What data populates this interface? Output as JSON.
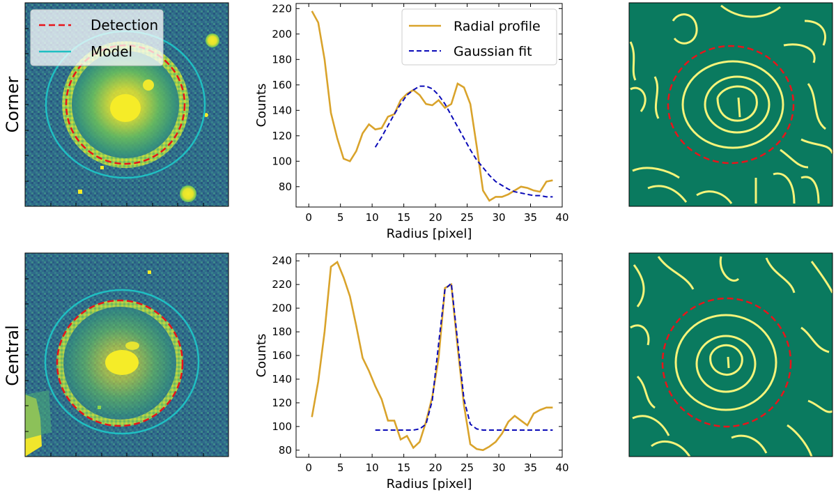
{
  "row_labels": [
    "Corner",
    "Central"
  ],
  "legend_image": {
    "items": [
      {
        "label": "Detection",
        "color": "#e8141a",
        "style": "dashed"
      },
      {
        "label": "Model",
        "color": "#1fbfc2",
        "style": "solid"
      }
    ]
  },
  "colors": {
    "image_bg": "#2f6f8a",
    "ring_fill": "#9ed646",
    "core": "#f5ec28",
    "edge_bg": "#0a7a5f",
    "edge_line": "#f6f47a",
    "profile": "#d9a32b",
    "fit": "#0b0bb8",
    "detection": "#e8141a",
    "model": "#1fbfc2"
  },
  "chart_data": [
    {
      "type": "line",
      "panel": "corner-profile",
      "xlabel": "Radius [pixel]",
      "ylabel": "Counts",
      "xlim": [
        -2,
        40
      ],
      "ylim": [
        64,
        224
      ],
      "xticks": [
        0,
        5,
        10,
        15,
        20,
        25,
        30,
        35,
        40
      ],
      "yticks": [
        80,
        100,
        120,
        140,
        160,
        180,
        200,
        220
      ],
      "legend": [
        "Radial profile",
        "Gaussian fit"
      ],
      "series": [
        {
          "name": "Radial profile",
          "x": [
            0.5,
            1.5,
            2.5,
            3.5,
            4.5,
            5.5,
            6.5,
            7.5,
            8.5,
            9.5,
            10.5,
            11.5,
            12.5,
            13.5,
            14.5,
            15.5,
            16.5,
            17.5,
            18.5,
            19.5,
            20.5,
            21.5,
            22.5,
            23.5,
            24.5,
            25.5,
            26.5,
            27.5,
            28.5,
            29.5,
            30.5,
            31.5,
            32.5,
            33.5,
            34.5,
            35.5,
            36.5,
            37.5,
            38.5
          ],
          "y": [
            218,
            209,
            180,
            138,
            118,
            102,
            100,
            108,
            122,
            129,
            125,
            126,
            135,
            137,
            148,
            153,
            156,
            152,
            145,
            144,
            148,
            142,
            145,
            161,
            158,
            145,
            112,
            77,
            69,
            72,
            72,
            74,
            77,
            80,
            79,
            77,
            76,
            84,
            85
          ]
        },
        {
          "name": "Gaussian fit",
          "x": [
            10.5,
            11.5,
            12.5,
            13.5,
            14.5,
            15.5,
            16.5,
            17.5,
            18.5,
            19.5,
            20.5,
            21.5,
            22.5,
            23.5,
            24.5,
            25.5,
            26.5,
            27.5,
            28.5,
            29.5,
            30.5,
            31.5,
            32.5,
            33.5,
            34.5,
            35.5,
            36.5,
            37.5,
            38.5
          ],
          "y": [
            111,
            119,
            128,
            137,
            145,
            152,
            156,
            159,
            159,
            157,
            152,
            145,
            136,
            127,
            118,
            109,
            101,
            95,
            89,
            84,
            81,
            78,
            76,
            75,
            74,
            73,
            73,
            72,
            72
          ]
        }
      ]
    },
    {
      "type": "line",
      "panel": "central-profile",
      "xlabel": "Radius [pixel]",
      "ylabel": "Counts",
      "xlim": [
        -2,
        40
      ],
      "ylim": [
        74,
        246
      ],
      "xticks": [
        0,
        5,
        10,
        15,
        20,
        25,
        30,
        35,
        40
      ],
      "yticks": [
        80,
        100,
        120,
        140,
        160,
        180,
        200,
        220,
        240
      ],
      "series": [
        {
          "name": "Radial profile",
          "x": [
            0.5,
            1.5,
            2.5,
            3.5,
            4.5,
            5.5,
            6.5,
            7.5,
            8.5,
            9.5,
            10.5,
            11.5,
            12.5,
            13.5,
            14.5,
            15.5,
            16.5,
            17.5,
            18.5,
            19.5,
            20.5,
            21.5,
            22.5,
            23.5,
            24.5,
            25.5,
            26.5,
            27.5,
            28.5,
            29.5,
            30.5,
            31.5,
            32.5,
            33.5,
            34.5,
            35.5,
            36.5,
            37.5,
            38.5
          ],
          "y": [
            108,
            138,
            180,
            235,
            239,
            226,
            210,
            185,
            158,
            147,
            134,
            123,
            105,
            105,
            89,
            92,
            82,
            87,
            104,
            125,
            158,
            217,
            220,
            167,
            118,
            85,
            81,
            80,
            83,
            87,
            94,
            104,
            109,
            105,
            101,
            111,
            114,
            116,
            116
          ]
        },
        {
          "name": "Gaussian fit",
          "x": [
            10.5,
            11.5,
            12.5,
            13.5,
            14.5,
            15.5,
            16.5,
            17.5,
            18.5,
            19.5,
            20.5,
            21.5,
            22.5,
            23.5,
            24.5,
            25.5,
            26.5,
            27.5,
            28.5,
            29.5,
            30.5,
            31.5,
            32.5,
            33.5,
            34.5,
            35.5,
            36.5,
            37.5,
            38.5
          ],
          "y": [
            97,
            97,
            97,
            97,
            97,
            97,
            97,
            98,
            102,
            122,
            170,
            216,
            221,
            172,
            123,
            102,
            98,
            97,
            97,
            97,
            97,
            97,
            97,
            97,
            97,
            97,
            97,
            97,
            97
          ]
        }
      ]
    }
  ]
}
